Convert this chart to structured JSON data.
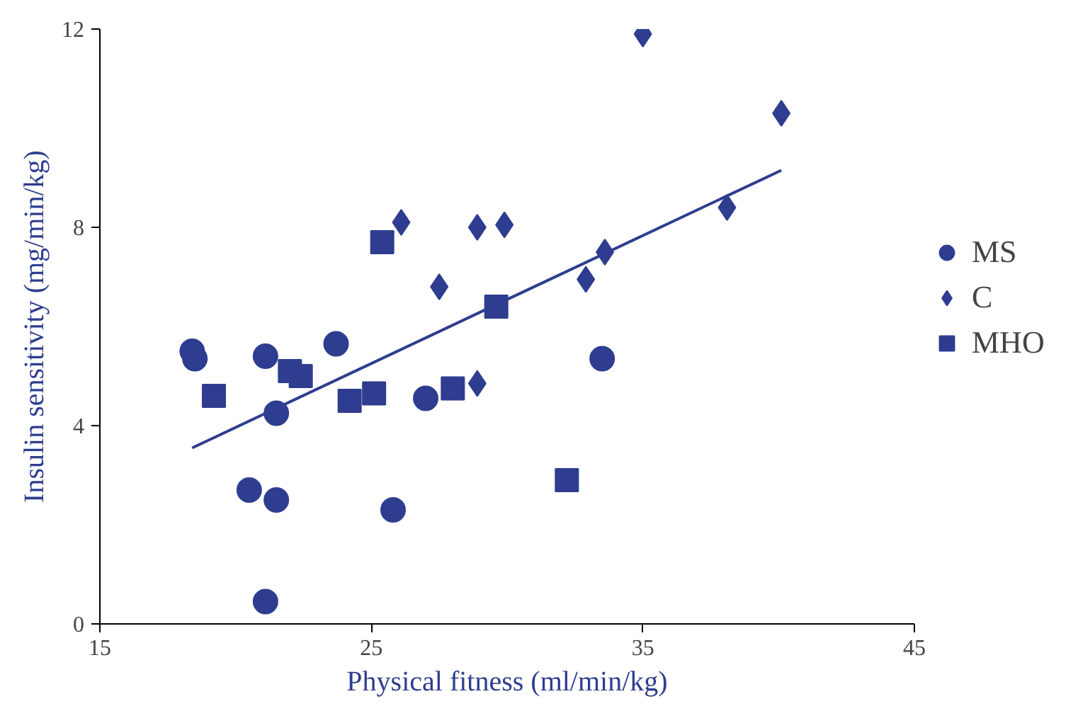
{
  "chart_data": {
    "type": "scatter",
    "xlabel": "Physical fitness (ml/min/kg)",
    "ylabel": "Insulin sensitivity (mg/min/kg)",
    "xlim": [
      15,
      45
    ],
    "ylim": [
      0,
      12
    ],
    "xticks": [
      15,
      25,
      35,
      45
    ],
    "yticks": [
      0,
      4,
      8,
      12
    ],
    "grid": false,
    "legend": "right",
    "series": [
      {
        "name": "MS",
        "color": "#2e3d8f",
        "marker": "circle",
        "x": [
          18.4,
          18.5,
          21.1,
          21.5,
          23.7,
          20.5,
          21.5,
          21.1,
          25.8,
          27.0,
          33.5
        ],
        "values": [
          5.5,
          5.35,
          5.4,
          4.25,
          5.65,
          2.7,
          2.5,
          0.45,
          2.3,
          4.55,
          5.35
        ]
      },
      {
        "name": "C",
        "color": "#2e3d8f",
        "marker": "diamond",
        "x": [
          26.1,
          27.5,
          28.9,
          29.9,
          28.9,
          32.9,
          33.6,
          35.0,
          38.1,
          40.1
        ],
        "values": [
          8.1,
          6.8,
          8.0,
          8.05,
          4.85,
          6.95,
          7.5,
          11.9,
          8.4,
          10.3
        ]
      },
      {
        "name": "MHO",
        "color": "#2e3d8f",
        "marker": "square",
        "x": [
          19.2,
          25.4,
          22.0,
          22.4,
          24.2,
          25.1,
          28.0,
          29.6,
          32.2
        ],
        "values": [
          4.6,
          7.7,
          5.1,
          5.0,
          4.5,
          4.65,
          4.75,
          6.4,
          2.9
        ]
      },
      {
        "type": "line",
        "color": "#2e3d8f",
        "marker": "none",
        "x": [
          18.4,
          40.1
        ],
        "values": [
          3.55,
          9.15
        ]
      }
    ]
  }
}
